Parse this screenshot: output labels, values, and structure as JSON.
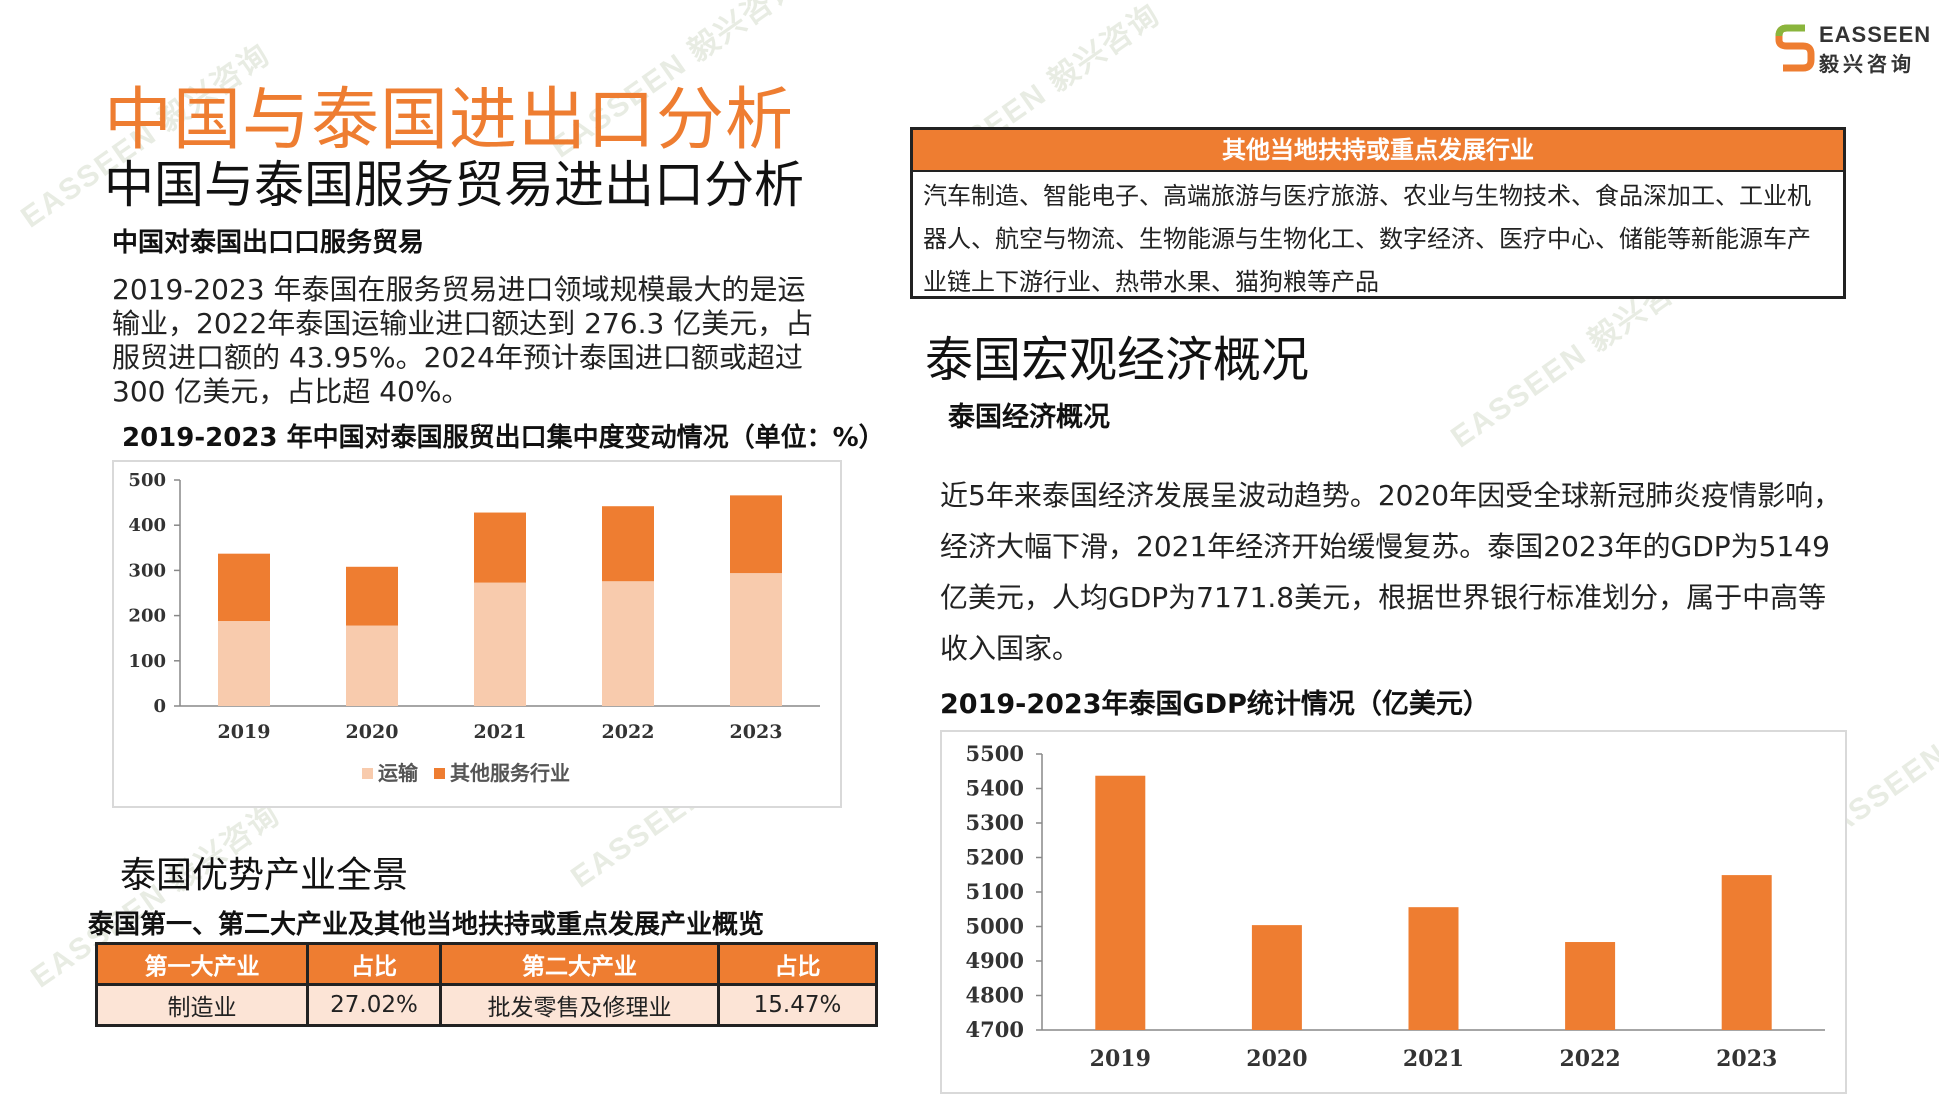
{
  "brand": {
    "name_en": "EASSEEN",
    "name_cn": "毅兴咨询",
    "color": "#ee7d31"
  },
  "watermark": {
    "en": "EASSEEN",
    "cn": "毅兴咨询"
  },
  "title": "中国与泰国进出口分析",
  "subtitle": "中国与泰国服务贸易进出口分析",
  "left": {
    "section_heading": "中国对泰国出口口服务贸易",
    "paragraph_lines": [
      "2019-2023  年泰国在服务贸易进口领域规模最大的是运",
      "输业，2022年泰国运输业进口额达到  276.3  亿美元，占",
      "服贸进口额的  43.95%。2024年预计泰国进口额或超过",
      "300 亿美元，占比超 40%。"
    ],
    "chart1_title": "2019-2023 年中国对泰国服贸出口集中度变动情况（单位：%）",
    "industries_heading": "泰国优势产业全景",
    "table_title": "泰国第一、第二大产业及其他当地扶持或重点发展产业概览",
    "table": {
      "headers": [
        "第一大产业",
        "占比",
        "第二大产业",
        "占比"
      ],
      "row": [
        "制造业",
        "27.02%",
        "批发零售及修理业",
        "15.47%"
      ]
    }
  },
  "right": {
    "box_title": "其他当地扶持或重点发展行业",
    "box_lines": [
      "汽车制造、智能电子、高端旅游与医疗旅游、农业与生物技术、食品深加工、工业机",
      "器人、航空与物流、生物能源与生物化工、数字经济、医疗中心、储能等新能源车产",
      "业链上下游行业、热带水果、猫狗粮等产品"
    ],
    "macro_heading": "泰国宏观经济概况",
    "econ_heading": "泰国经济概况",
    "paragraph_lines": [
      "近5年来泰国经济发展呈波动趋势。2020年因受全球新冠肺炎疫情影响，",
      "经济大幅下滑，2021年经济开始缓慢复苏。泰国2023年的GDP为5149",
      "亿美元，人均GDP为7171.8美元，根据世界银行标准划分，属于中高等",
      "收入国家。"
    ],
    "chart2_title": "2019-2023年泰国GDP统计情况（亿美元）"
  },
  "chart_data": [
    {
      "type": "bar",
      "stacked": true,
      "categories": [
        "2019",
        "2020",
        "2021",
        "2022",
        "2023"
      ],
      "series": [
        {
          "name": "运输",
          "color": "#f8cbad",
          "values": [
            188,
            178,
            273,
            276,
            294
          ]
        },
        {
          "name": "其他服务行业",
          "color": "#ee7d31",
          "values": [
            149,
            130,
            155,
            166,
            172
          ]
        }
      ],
      "ylim": [
        0,
        500
      ],
      "yticks": [
        0,
        100,
        200,
        300,
        400,
        500
      ],
      "legend": "bottom",
      "grid": false
    },
    {
      "type": "bar",
      "categories": [
        "2019",
        "2020",
        "2021",
        "2022",
        "2023"
      ],
      "values": [
        5437,
        5004,
        5056,
        4955,
        5149
      ],
      "color": "#ee7d31",
      "ylim": [
        4700,
        5500
      ],
      "yticks": [
        4700,
        4800,
        4900,
        5000,
        5100,
        5200,
        5300,
        5400,
        5500
      ],
      "grid": false
    }
  ]
}
